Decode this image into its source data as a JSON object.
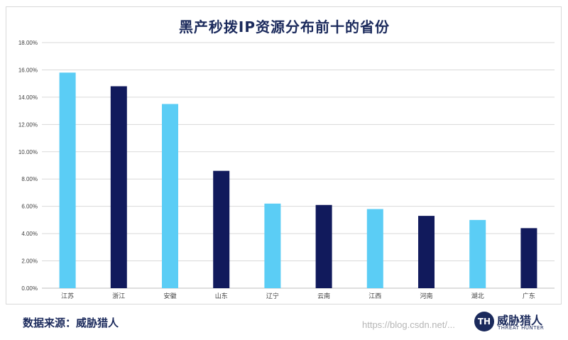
{
  "chart_data": {
    "type": "bar",
    "title": "黑产秒拨IP资源分布前十的省份",
    "categories": [
      "江苏",
      "浙江",
      "安徽",
      "山东",
      "辽宁",
      "云南",
      "江西",
      "河南",
      "湖北",
      "广东"
    ],
    "values": [
      15.8,
      14.8,
      13.5,
      8.6,
      6.2,
      6.1,
      5.8,
      5.3,
      5.0,
      4.4
    ],
    "value_unit": "%",
    "ylim": [
      0,
      18
    ],
    "yticks": [
      "0.00%",
      "2.00%",
      "4.00%",
      "6.00%",
      "8.00%",
      "10.00%",
      "12.00%",
      "14.00%",
      "16.00%",
      "18.00%"
    ],
    "grid": true,
    "bar_colors": [
      "#5bcdf5",
      "#111a5c",
      "#5bcdf5",
      "#111a5c",
      "#5bcdf5",
      "#111a5c",
      "#5bcdf5",
      "#111a5c",
      "#5bcdf5",
      "#111a5c"
    ]
  },
  "footer": {
    "source": "数据来源：威胁猎人"
  },
  "logo": {
    "mark": "TH",
    "name": "威胁猎人",
    "tagline": "THREAT HUNTER"
  },
  "watermark": "https://blog.csdn.net/..."
}
